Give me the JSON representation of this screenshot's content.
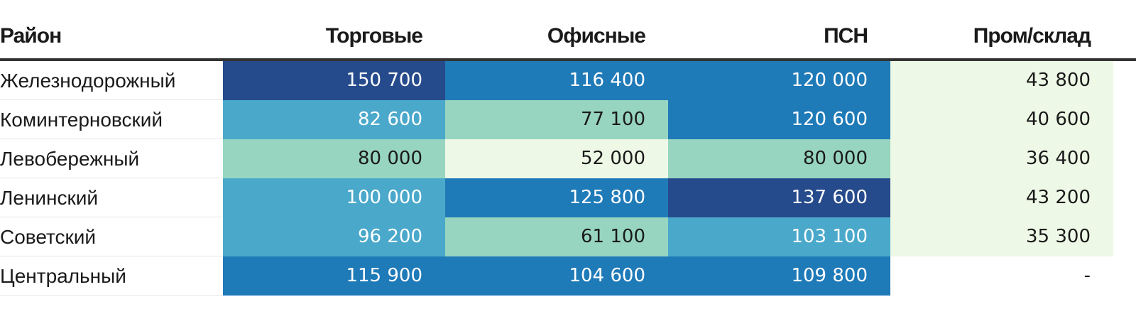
{
  "chart_data": {
    "type": "table",
    "columns": [
      "Район",
      "Торговые",
      "Офисные",
      "ПСН",
      "Пром/склад"
    ],
    "rows": [
      {
        "district": "Железнодорожный",
        "values": [
          "150 700",
          "116 400",
          "120 000",
          "43 800"
        ]
      },
      {
        "district": "Коминтерновский",
        "values": [
          "82 600",
          "77 100",
          "120 600",
          "40 600"
        ]
      },
      {
        "district": "Левобережный",
        "values": [
          "80 000",
          "52 000",
          "80 000",
          "36 400"
        ]
      },
      {
        "district": "Ленинский",
        "values": [
          "100 000",
          "125 800",
          "137 600",
          "43 200"
        ]
      },
      {
        "district": "Советский",
        "values": [
          "96 200",
          "61 100",
          "103 100",
          "35 300"
        ]
      },
      {
        "district": "Центральный",
        "values": [
          "115 900",
          "104 600",
          "109 800",
          "-"
        ]
      }
    ],
    "cell_colors": [
      [
        "#264b8c",
        "#1f7ab8",
        "#1f7ab8",
        "#eef8e6"
      ],
      [
        "#4aa8cb",
        "#97d5c0",
        "#1f7ab8",
        "#eef8e6"
      ],
      [
        "#97d5c0",
        "#eef8e6",
        "#97d5c0",
        "#eef8e6"
      ],
      [
        "#4aa8cb",
        "#1f7ab8",
        "#264b8c",
        "#eef8e6"
      ],
      [
        "#4aa8cb",
        "#97d5c0",
        "#4aa8cb",
        "#eef8e6"
      ],
      [
        "#1f7ab8",
        "#1f7ab8",
        "#1f7ab8",
        "#ffffff"
      ]
    ],
    "text_colors": [
      [
        "#ffffff",
        "#ffffff",
        "#ffffff",
        "#1a1a1a"
      ],
      [
        "#ffffff",
        "#1a1a1a",
        "#ffffff",
        "#1a1a1a"
      ],
      [
        "#1a1a1a",
        "#1a1a1a",
        "#1a1a1a",
        "#1a1a1a"
      ],
      [
        "#ffffff",
        "#ffffff",
        "#ffffff",
        "#1a1a1a"
      ],
      [
        "#ffffff",
        "#1a1a1a",
        "#ffffff",
        "#1a1a1a"
      ],
      [
        "#ffffff",
        "#ffffff",
        "#ffffff",
        "#1a1a1a"
      ]
    ]
  }
}
